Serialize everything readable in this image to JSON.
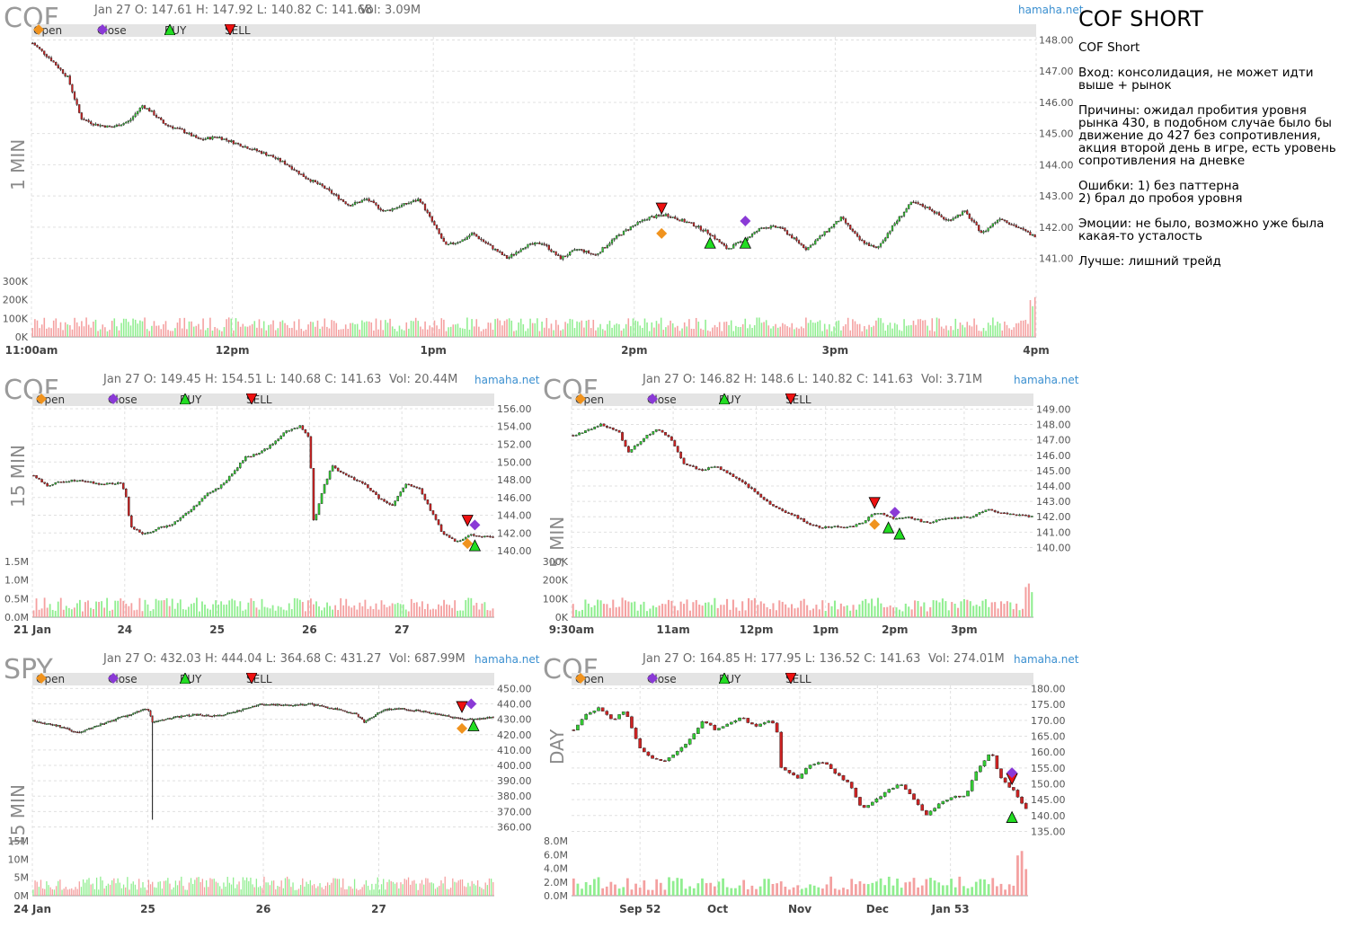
{
  "brand": "hamaha.net",
  "legend": {
    "open": "Open",
    "close": "Close",
    "buy": "BUY",
    "sell": "SELL"
  },
  "colors": {
    "up": "#33cc33",
    "down": "#cc2222",
    "vol_up": "#90ee90",
    "vol_down": "#f4a0a0",
    "open_marker": "#f0931e",
    "close_marker": "#8a3ad6",
    "buy_marker": "#22dd22",
    "sell_marker": "#ee1111",
    "legend_bg": "#e4e4e4",
    "grid": "#e0e0e0",
    "brand": "#3a8fd0"
  },
  "notes": {
    "title": "COF SHORT",
    "lines": [
      "COF Short",
      "Вход: консолидация, не может идти выше + рынок",
      "Причины: ожидал пробития уровня рынка 430, в подобном случае было бы движение до 427 без сопротивления, акция второй день в игре, есть уровень сопротивления на дневке",
      "Ошибки: 1) без паттерна\n2) брал до пробоя уровня",
      "Эмоции: не было, возможно уже была какая-то усталость",
      "Лучше: лишний трейд"
    ]
  },
  "chart_data": [
    {
      "symbol": "COF",
      "timeframe": "1 MIN",
      "type": "candlestick",
      "ohlc_header": "Jan 27 O: 147.61 H: 147.92 L: 140.82 C: 141.68",
      "volume_header": "Vol: 3.09M",
      "y_ticks": [
        "148.00",
        "147.00",
        "146.00",
        "145.00",
        "144.00",
        "143.00",
        "142.00",
        "141.00"
      ],
      "ylim": [
        140.5,
        148.1
      ],
      "vol_ticks": [
        "300K",
        "200K",
        "100K",
        "0K"
      ],
      "vol_max": 300000,
      "x_ticks": [
        "11:00am",
        "12pm",
        "1pm",
        "2pm",
        "3pm",
        "4pm"
      ],
      "path": [
        [
          0,
          147.9
        ],
        [
          0.02,
          147.4
        ],
        [
          0.04,
          146.8
        ],
        [
          0.055,
          145.5
        ],
        [
          0.07,
          145.3
        ],
        [
          0.09,
          145.2
        ],
        [
          0.11,
          145.4
        ],
        [
          0.125,
          145.9
        ],
        [
          0.135,
          145.7
        ],
        [
          0.15,
          145.3
        ],
        [
          0.17,
          145.1
        ],
        [
          0.19,
          144.8
        ],
        [
          0.21,
          144.9
        ],
        [
          0.23,
          144.7
        ],
        [
          0.25,
          144.5
        ],
        [
          0.27,
          144.3
        ],
        [
          0.29,
          144.0
        ],
        [
          0.31,
          143.6
        ],
        [
          0.33,
          143.3
        ],
        [
          0.36,
          142.7
        ],
        [
          0.38,
          142.9
        ],
        [
          0.4,
          142.5
        ],
        [
          0.42,
          142.7
        ],
        [
          0.44,
          142.9
        ],
        [
          0.45,
          142.4
        ],
        [
          0.47,
          141.4
        ],
        [
          0.49,
          141.6
        ],
        [
          0.5,
          141.8
        ],
        [
          0.52,
          141.4
        ],
        [
          0.54,
          141.0
        ],
        [
          0.56,
          141.4
        ],
        [
          0.58,
          141.5
        ],
        [
          0.6,
          141.0
        ],
        [
          0.62,
          141.3
        ],
        [
          0.64,
          141.1
        ],
        [
          0.66,
          141.6
        ],
        [
          0.68,
          142.0
        ],
        [
          0.7,
          142.3
        ],
        [
          0.72,
          142.4
        ],
        [
          0.75,
          142.1
        ],
        [
          0.77,
          141.8
        ],
        [
          0.79,
          141.3
        ],
        [
          0.81,
          141.6
        ],
        [
          0.83,
          142.0
        ],
        [
          0.85,
          142.0
        ],
        [
          0.88,
          141.3
        ],
        [
          0.9,
          141.8
        ],
        [
          0.92,
          142.3
        ],
        [
          0.94,
          141.6
        ],
        [
          0.96,
          141.3
        ],
        [
          0.98,
          142.1
        ],
        [
          1.0,
          142.8
        ],
        [
          1.02,
          142.6
        ],
        [
          1.04,
          142.2
        ],
        [
          1.06,
          142.5
        ],
        [
          1.08,
          141.8
        ],
        [
          1.1,
          142.3
        ],
        [
          1.12,
          142.0
        ],
        [
          1.14,
          141.7
        ]
      ],
      "vol_spike_end": 220000,
      "markers": [
        {
          "kind": "sell",
          "x": 0.715,
          "y": 142.6
        },
        {
          "kind": "open",
          "x": 0.715,
          "y": 141.8
        },
        {
          "kind": "close",
          "x": 0.81,
          "y": 142.2
        },
        {
          "kind": "buy",
          "x": 0.77,
          "y": 141.5
        },
        {
          "kind": "buy",
          "x": 0.81,
          "y": 141.5
        }
      ]
    },
    {
      "symbol": "COF",
      "timeframe": "15 MIN",
      "type": "candlestick",
      "ohlc_header": "Jan 27 O: 149.45 H: 154.51 L: 140.68 C: 141.63",
      "volume_header": "Vol: 20.44M",
      "y_ticks": [
        "156.00",
        "154.00",
        "152.00",
        "150.00",
        "148.00",
        "146.00",
        "144.00",
        "142.00",
        "140.00"
      ],
      "ylim": [
        139.5,
        156.3
      ],
      "vol_ticks": [
        "1.5M",
        "1.0M",
        "0.5M",
        "0.0M"
      ],
      "vol_max": 1500000,
      "x_ticks": [
        "21 Jan",
        "24",
        "25",
        "26",
        "27"
      ],
      "path": [
        [
          0,
          148.5
        ],
        [
          0.03,
          147.3
        ],
        [
          0.06,
          147.8
        ],
        [
          0.1,
          148.0
        ],
        [
          0.14,
          147.5
        ],
        [
          0.19,
          147.6
        ],
        [
          0.2,
          146.5
        ],
        [
          0.21,
          142.8
        ],
        [
          0.24,
          141.8
        ],
        [
          0.27,
          142.5
        ],
        [
          0.3,
          143.0
        ],
        [
          0.34,
          144.5
        ],
        [
          0.38,
          146.5
        ],
        [
          0.4,
          147.0
        ],
        [
          0.43,
          148.5
        ],
        [
          0.46,
          150.5
        ],
        [
          0.49,
          151.0
        ],
        [
          0.52,
          152.0
        ],
        [
          0.55,
          153.5
        ],
        [
          0.58,
          154.0
        ],
        [
          0.6,
          152.8
        ],
        [
          0.61,
          143.0
        ],
        [
          0.63,
          147.0
        ],
        [
          0.65,
          149.5
        ],
        [
          0.68,
          148.5
        ],
        [
          0.72,
          147.5
        ],
        [
          0.75,
          146.0
        ],
        [
          0.78,
          145.0
        ],
        [
          0.81,
          147.5
        ],
        [
          0.84,
          147.0
        ],
        [
          0.86,
          145.0
        ],
        [
          0.89,
          142.0
        ],
        [
          0.92,
          141.0
        ],
        [
          0.95,
          141.8
        ],
        [
          1.0,
          141.5
        ]
      ],
      "vol_spike_end": 300000,
      "markers": [
        {
          "kind": "sell",
          "x": 0.942,
          "y": 143.4
        },
        {
          "kind": "open",
          "x": 0.942,
          "y": 140.8
        },
        {
          "kind": "close",
          "x": 0.958,
          "y": 142.9
        },
        {
          "kind": "buy",
          "x": 0.958,
          "y": 140.6
        }
      ]
    },
    {
      "symbol": "COF",
      "timeframe": "5 MIN",
      "type": "candlestick",
      "ohlc_header": "Jan 27 O: 146.82 H: 148.6 L: 140.82 C: 141.63",
      "volume_header": "Vol: 3.71M",
      "y_ticks": [
        "149.00",
        "148.00",
        "147.00",
        "146.00",
        "145.00",
        "144.00",
        "143.00",
        "142.00",
        "141.00",
        "140.00"
      ],
      "ylim": [
        139.5,
        149.2
      ],
      "vol_ticks": [
        "300K",
        "200K",
        "100K",
        "0K"
      ],
      "vol_max": 300000,
      "x_ticks": [
        "9:30am",
        "11am",
        "12pm",
        "1pm",
        "2pm",
        "3pm"
      ],
      "path": [
        [
          0,
          147.3
        ],
        [
          0.03,
          147.6
        ],
        [
          0.06,
          148.0
        ],
        [
          0.1,
          147.5
        ],
        [
          0.12,
          146.2
        ],
        [
          0.15,
          147.0
        ],
        [
          0.18,
          147.7
        ],
        [
          0.21,
          147.2
        ],
        [
          0.24,
          145.5
        ],
        [
          0.28,
          145.0
        ],
        [
          0.31,
          145.3
        ],
        [
          0.34,
          144.8
        ],
        [
          0.38,
          144.0
        ],
        [
          0.41,
          143.3
        ],
        [
          0.44,
          142.6
        ],
        [
          0.48,
          142.1
        ],
        [
          0.51,
          141.6
        ],
        [
          0.54,
          141.3
        ],
        [
          0.57,
          141.4
        ],
        [
          0.6,
          141.3
        ],
        [
          0.63,
          141.6
        ],
        [
          0.65,
          142.1
        ],
        [
          0.67,
          142.3
        ],
        [
          0.7,
          141.8
        ],
        [
          0.73,
          142.0
        ],
        [
          0.77,
          141.6
        ],
        [
          0.8,
          141.8
        ],
        [
          0.83,
          141.9
        ],
        [
          0.87,
          142.0
        ],
        [
          0.9,
          142.5
        ],
        [
          0.94,
          142.2
        ],
        [
          1.0,
          142.0
        ]
      ],
      "vol_spike_end": 230000,
      "markers": [
        {
          "kind": "sell",
          "x": 0.656,
          "y": 142.9
        },
        {
          "kind": "open",
          "x": 0.656,
          "y": 141.5
        },
        {
          "kind": "close",
          "x": 0.7,
          "y": 142.3
        },
        {
          "kind": "buy",
          "x": 0.686,
          "y": 141.3
        },
        {
          "kind": "buy",
          "x": 0.71,
          "y": 140.9
        }
      ]
    },
    {
      "symbol": "SPY",
      "timeframe": "15 MIN",
      "type": "candlestick",
      "ohlc_header": "Jan 27 O: 432.03 H: 444.04 L: 364.68 C: 431.27",
      "volume_header": "Vol: 687.99M",
      "y_ticks": [
        "450.00",
        "440.00",
        "430.00",
        "420.00",
        "410.00",
        "400.00",
        "390.00",
        "380.00",
        "370.00",
        "360.00"
      ],
      "ylim": [
        355,
        452
      ],
      "vol_ticks": [
        "15M",
        "10M",
        "5M",
        "0M"
      ],
      "vol_max": 15000000,
      "x_ticks": [
        "24 Jan",
        "25",
        "26",
        "27"
      ],
      "path": [
        [
          0,
          429
        ],
        [
          0.05,
          426
        ],
        [
          0.1,
          421
        ],
        [
          0.15,
          427
        ],
        [
          0.2,
          432
        ],
        [
          0.25,
          437
        ],
        [
          0.26,
          428
        ],
        [
          0.3,
          431
        ],
        [
          0.35,
          433
        ],
        [
          0.4,
          432
        ],
        [
          0.45,
          436
        ],
        [
          0.5,
          440
        ],
        [
          0.55,
          439
        ],
        [
          0.6,
          440
        ],
        [
          0.65,
          437
        ],
        [
          0.7,
          434
        ],
        [
          0.72,
          428
        ],
        [
          0.76,
          436
        ],
        [
          0.8,
          437
        ],
        [
          0.85,
          435
        ],
        [
          0.9,
          432
        ],
        [
          0.94,
          430
        ],
        [
          1.0,
          431
        ]
      ],
      "spike_low": {
        "x": 0.26,
        "y": 364.68
      },
      "vol_spike_end": 5000000,
      "markers": [
        {
          "kind": "sell",
          "x": 0.93,
          "y": 438
        },
        {
          "kind": "open",
          "x": 0.93,
          "y": 424
        },
        {
          "kind": "close",
          "x": 0.95,
          "y": 440
        },
        {
          "kind": "buy",
          "x": 0.955,
          "y": 426
        }
      ]
    },
    {
      "symbol": "COF",
      "timeframe": "DAY",
      "type": "candlestick",
      "ohlc_header": "Jan 27 O: 164.85 H: 177.95 L: 136.52 C: 141.63",
      "volume_header": "Vol: 274.01M",
      "y_ticks": [
        "180.00",
        "175.00",
        "170.00",
        "165.00",
        "160.00",
        "155.00",
        "150.00",
        "145.00",
        "140.00",
        "135.00"
      ],
      "ylim": [
        134,
        181
      ],
      "vol_ticks": [
        "8.0M",
        "6.0M",
        "4.0M",
        "2.0M",
        "0.0M"
      ],
      "vol_max": 8000000,
      "x_ticks": [
        "Sep 52",
        "Oct",
        "Nov",
        "Dec",
        "Jan 53"
      ],
      "path": [
        [
          0,
          167
        ],
        [
          0.03,
          172
        ],
        [
          0.06,
          174
        ],
        [
          0.09,
          170
        ],
        [
          0.12,
          173
        ],
        [
          0.15,
          162
        ],
        [
          0.18,
          158
        ],
        [
          0.21,
          157
        ],
        [
          0.24,
          160
        ],
        [
          0.27,
          164
        ],
        [
          0.3,
          170
        ],
        [
          0.33,
          167
        ],
        [
          0.36,
          169
        ],
        [
          0.39,
          171
        ],
        [
          0.42,
          168
        ],
        [
          0.45,
          170
        ],
        [
          0.47,
          169
        ],
        [
          0.48,
          155
        ],
        [
          0.52,
          152
        ],
        [
          0.55,
          156
        ],
        [
          0.58,
          157
        ],
        [
          0.61,
          153
        ],
        [
          0.64,
          150
        ],
        [
          0.67,
          142
        ],
        [
          0.7,
          145
        ],
        [
          0.73,
          148
        ],
        [
          0.76,
          150
        ],
        [
          0.79,
          145
        ],
        [
          0.82,
          140
        ],
        [
          0.85,
          144
        ],
        [
          0.88,
          146
        ],
        [
          0.91,
          146
        ],
        [
          0.93,
          153
        ],
        [
          0.95,
          157
        ],
        [
          0.97,
          160
        ],
        [
          0.99,
          152
        ],
        [
          1.02,
          148
        ],
        [
          1.05,
          142
        ]
      ],
      "vol_spike_end": 7000000,
      "markers": [
        {
          "kind": "sell",
          "x": 1.013,
          "y": 151.5
        },
        {
          "kind": "close",
          "x": 1.013,
          "y": 153.5
        },
        {
          "kind": "buy",
          "x": 1.013,
          "y": 139.5
        }
      ]
    }
  ]
}
